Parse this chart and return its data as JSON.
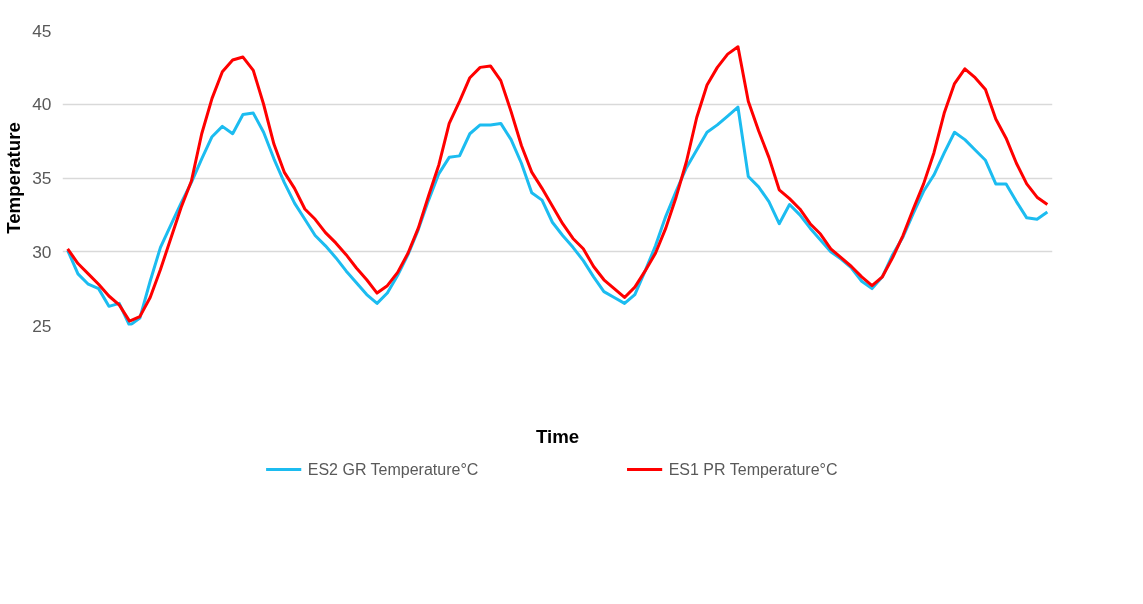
{
  "chart_data": {
    "type": "line",
    "xlabel": "Time",
    "ylabel": "Temperature",
    "ylim": [
      25,
      45
    ],
    "yticks": [
      25,
      30,
      35,
      40,
      45
    ],
    "tick_labels": "y",
    "grid": "y",
    "legend": "bottom",
    "line_style": "solid",
    "categories": [
      null,
      null,
      null,
      null,
      null,
      null,
      null,
      null,
      null,
      null,
      null,
      null,
      null,
      null,
      null,
      null,
      null,
      null,
      null,
      null,
      null,
      null,
      null,
      null,
      null,
      null,
      null,
      null,
      null,
      null,
      null,
      null,
      null,
      null,
      null,
      null,
      null,
      null,
      null,
      null,
      null,
      null,
      null,
      null,
      null,
      null,
      null,
      null,
      null,
      null,
      null,
      null,
      null,
      null,
      null,
      null,
      null,
      null,
      null,
      null,
      null,
      null,
      null,
      null,
      null,
      null,
      null,
      null,
      null,
      null,
      null,
      null,
      null,
      null,
      null,
      null,
      null,
      null,
      null,
      null,
      null,
      null,
      null,
      null,
      null,
      null,
      null,
      null,
      null,
      null,
      null,
      null,
      null,
      null,
      null,
      null
    ],
    "series": [
      {
        "name": "ES2 GR  Temperature°C",
        "color": "#1cbcf0",
        "values": [
          30.1,
          28.5,
          27.8,
          27.5,
          26.3,
          26.5,
          25.0,
          25.5,
          28.0,
          30.3,
          31.8,
          33.3,
          34.7,
          36.3,
          37.8,
          38.5,
          38.0,
          39.3,
          39.4,
          38.1,
          36.3,
          34.7,
          33.3,
          32.2,
          31.1,
          30.4,
          29.6,
          28.7,
          27.9,
          27.1,
          26.5,
          27.2,
          28.4,
          29.8,
          31.5,
          33.5,
          35.3,
          36.4,
          36.5,
          38.0,
          38.6,
          38.6,
          38.7,
          37.6,
          36.0,
          34.0,
          33.5,
          32.0,
          31.1,
          30.3,
          29.4,
          28.3,
          27.3,
          26.9,
          26.5,
          27.1,
          28.7,
          30.4,
          32.4,
          34.1,
          35.7,
          36.9,
          38.1,
          38.6,
          39.2,
          39.8,
          35.1,
          34.4,
          33.4,
          31.9,
          33.2,
          32.5,
          31.6,
          30.8,
          30.0,
          29.5,
          28.9,
          28.0,
          27.5,
          28.3,
          29.8,
          31.0,
          32.6,
          34.1,
          35.2,
          36.7,
          38.1,
          37.6,
          36.9,
          36.2,
          34.6,
          34.6,
          33.4,
          32.3,
          32.2,
          32.7
        ]
      },
      {
        "name": "ES1 PR Temperature°C",
        "color": "#ff0000",
        "values": [
          30.2,
          29.2,
          28.5,
          27.8,
          27.0,
          26.4,
          25.3,
          25.6,
          26.9,
          28.8,
          30.9,
          33.0,
          34.8,
          38.0,
          40.4,
          42.2,
          43.0,
          43.2,
          42.3,
          40.0,
          37.3,
          35.4,
          34.3,
          32.9,
          32.2,
          31.3,
          30.6,
          29.8,
          28.9,
          28.1,
          27.2,
          27.7,
          28.6,
          29.9,
          31.6,
          33.8,
          35.9,
          38.7,
          40.2,
          41.8,
          42.5,
          42.6,
          41.6,
          39.5,
          37.2,
          35.4,
          34.3,
          33.1,
          31.9,
          30.9,
          30.2,
          29.0,
          28.1,
          27.5,
          26.9,
          27.6,
          28.7,
          29.9,
          31.6,
          33.7,
          36.1,
          39.1,
          41.3,
          42.5,
          43.4,
          43.9,
          40.2,
          38.2,
          36.4,
          34.2,
          33.6,
          32.9,
          31.9,
          31.2,
          30.2,
          29.6,
          29.0,
          28.3,
          27.7,
          28.3,
          29.6,
          31.1,
          32.9,
          34.6,
          36.7,
          39.4,
          41.4,
          42.4,
          41.8,
          41.0,
          39.0,
          37.7,
          36.0,
          34.6,
          33.7,
          33.2
        ]
      }
    ]
  }
}
